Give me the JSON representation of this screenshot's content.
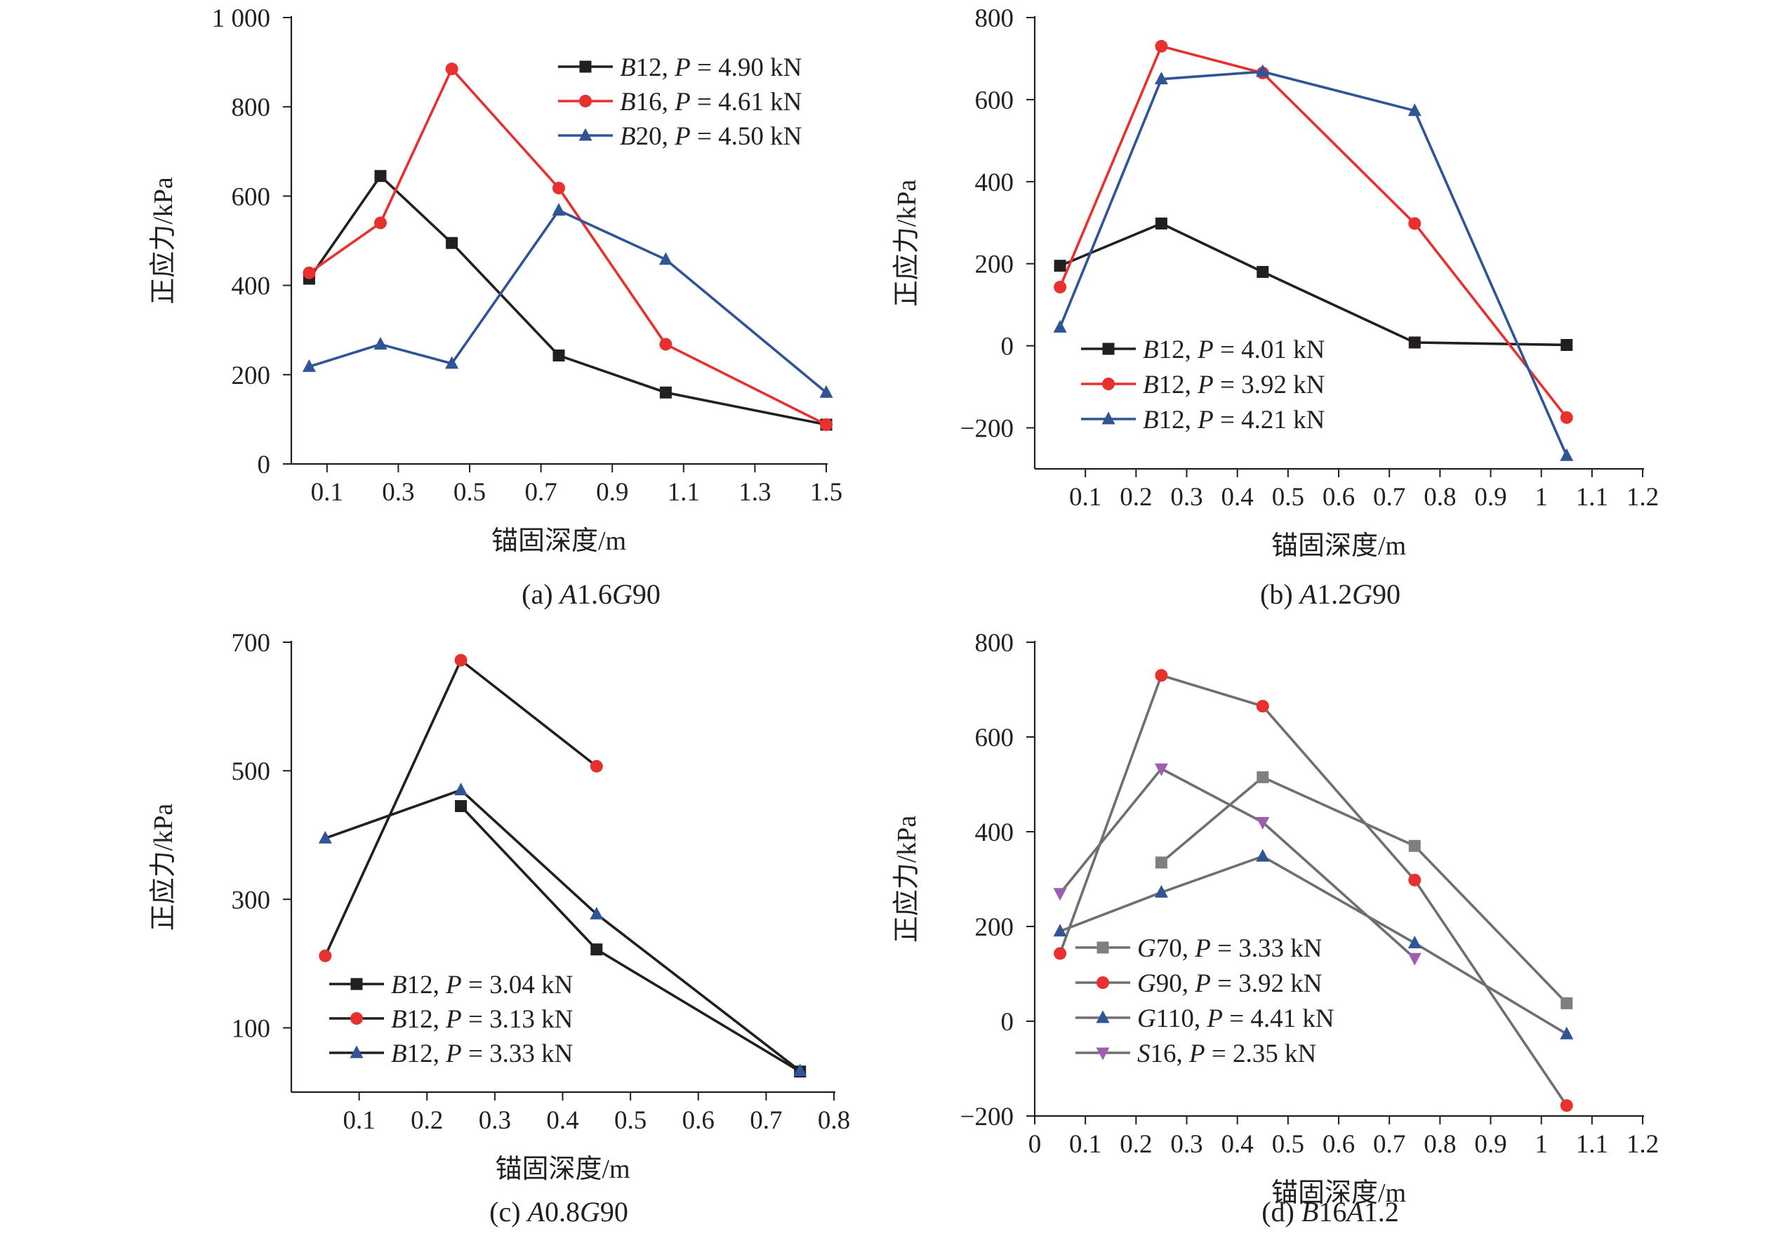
{
  "chart_data": [
    {
      "type": "line",
      "caption": {
        "prefix": "(a) ",
        "id_parts": [
          {
            "t": "A",
            "i": true
          },
          {
            "t": "1.6",
            "i": false
          },
          {
            "t": "G",
            "i": true
          },
          {
            "t": "90",
            "i": false
          }
        ]
      },
      "xlabel": "锚固深度/m",
      "ylabel": "正应力/kPa",
      "xlim": [
        0,
        1.5
      ],
      "ylim": [
        0,
        1000
      ],
      "xticks": [
        0.1,
        0.3,
        0.5,
        0.7,
        0.9,
        1.1,
        1.3,
        1.5
      ],
      "yticks": [
        0,
        200,
        400,
        600,
        800,
        1000
      ],
      "ytick_labels": [
        "0",
        "200",
        "400",
        "600",
        "800",
        "1 000"
      ],
      "legend_position": "top-right",
      "series": [
        {
          "name": "B12, P = 4.90 kN",
          "legend_parts": [
            {
              "t": "B",
              "i": true
            },
            {
              "t": "12, ",
              "i": false
            },
            {
              "t": "P",
              "i": true
            },
            {
              "t": " = 4.90 kN",
              "i": false
            }
          ],
          "color": "#231f20",
          "marker": "square",
          "x": [
            0.05,
            0.25,
            0.45,
            0.75,
            1.05,
            1.5
          ],
          "y": [
            415,
            645,
            495,
            243,
            160,
            88
          ]
        },
        {
          "name": "B16, P = 4.61 kN",
          "legend_parts": [
            {
              "t": "B",
              "i": true
            },
            {
              "t": "16, ",
              "i": false
            },
            {
              "t": "P",
              "i": true
            },
            {
              "t": " = 4.61 kN",
              "i": false
            }
          ],
          "color": "#e8312f",
          "marker": "circle",
          "x": [
            0.05,
            0.25,
            0.45,
            0.75,
            1.05,
            1.5
          ],
          "y": [
            428,
            540,
            885,
            618,
            268,
            88
          ]
        },
        {
          "name": "B20, P = 4.50 kN",
          "legend_parts": [
            {
              "t": "B",
              "i": true
            },
            {
              "t": "20, ",
              "i": false
            },
            {
              "t": "P",
              "i": true
            },
            {
              "t": " = 4.50 kN",
              "i": false
            }
          ],
          "color": "#2f5597",
          "marker": "triangle",
          "x": [
            0.05,
            0.25,
            0.45,
            0.75,
            1.05,
            1.5
          ],
          "y": [
            218,
            268,
            225,
            568,
            458,
            160
          ]
        }
      ]
    },
    {
      "type": "line",
      "caption": {
        "prefix": "(b) ",
        "id_parts": [
          {
            "t": "A",
            "i": true
          },
          {
            "t": "1.2",
            "i": false
          },
          {
            "t": "G",
            "i": true
          },
          {
            "t": "90",
            "i": false
          }
        ]
      },
      "xlabel": "锚固深度/m",
      "ylabel": "正应力/kPa",
      "xlim": [
        0,
        1.2
      ],
      "ylim": [
        -300,
        800
      ],
      "xticks": [
        0.1,
        0.2,
        0.3,
        0.4,
        0.5,
        0.6,
        0.7,
        0.8,
        0.9,
        1.0,
        1.1,
        1.2
      ],
      "yticks": [
        -200,
        0,
        200,
        400,
        600,
        800
      ],
      "ytick_labels": [
        "−200",
        "0",
        "200",
        "400",
        "600",
        "800"
      ],
      "legend_position": "bottom-left",
      "series": [
        {
          "name": "B12, P = 4.01 kN",
          "legend_parts": [
            {
              "t": "B",
              "i": true
            },
            {
              "t": "12, ",
              "i": false
            },
            {
              "t": "P",
              "i": true
            },
            {
              "t": " = 4.01 kN",
              "i": false
            }
          ],
          "color": "#231f20",
          "marker": "square",
          "x": [
            0.05,
            0.25,
            0.45,
            0.75,
            1.05
          ],
          "y": [
            195,
            298,
            180,
            8,
            2
          ]
        },
        {
          "name": "B12, P = 3.92 kN",
          "legend_parts": [
            {
              "t": "B",
              "i": true
            },
            {
              "t": "12, ",
              "i": false
            },
            {
              "t": "P",
              "i": true
            },
            {
              "t": " = 3.92 kN",
              "i": false
            }
          ],
          "color": "#e8312f",
          "marker": "circle",
          "x": [
            0.05,
            0.25,
            0.45,
            0.75,
            1.05
          ],
          "y": [
            143,
            730,
            665,
            298,
            -175
          ]
        },
        {
          "name": "B12, P = 4.21 kN",
          "legend_parts": [
            {
              "t": "B",
              "i": true
            },
            {
              "t": "12, ",
              "i": false
            },
            {
              "t": "P",
              "i": true
            },
            {
              "t": " = 4.21 kN",
              "i": false
            }
          ],
          "color": "#2f5597",
          "marker": "triangle",
          "x": [
            0.05,
            0.25,
            0.45,
            0.75,
            1.05
          ],
          "y": [
            45,
            650,
            668,
            573,
            -268
          ]
        }
      ]
    },
    {
      "type": "line",
      "caption": {
        "prefix": "(c) ",
        "id_parts": [
          {
            "t": "A",
            "i": true
          },
          {
            "t": "0.8",
            "i": false
          },
          {
            "t": "G",
            "i": true
          },
          {
            "t": "90",
            "i": false
          }
        ]
      },
      "xlabel": "锚固深度/m",
      "ylabel": "正应力/kPa",
      "xlim": [
        0,
        0.8
      ],
      "ylim": [
        0,
        700
      ],
      "xticks": [
        0.1,
        0.2,
        0.3,
        0.4,
        0.5,
        0.6,
        0.7,
        0.8
      ],
      "yticks": [
        100,
        300,
        500,
        700
      ],
      "ytick_labels": [
        "100",
        "300",
        "500",
        "700"
      ],
      "legend_position": "bottom-left",
      "series": [
        {
          "name": "B12, P = 3.04 kN",
          "legend_parts": [
            {
              "t": "B",
              "i": true
            },
            {
              "t": "12, ",
              "i": false
            },
            {
              "t": "P",
              "i": true
            },
            {
              "t": " = 3.04 kN",
              "i": false
            }
          ],
          "color": "#231f20",
          "marker": "square",
          "line_color": "#231f20",
          "x": [
            0.25,
            0.45,
            0.75
          ],
          "y": [
            445,
            222,
            32
          ]
        },
        {
          "name": "B12, P = 3.13 kN",
          "legend_parts": [
            {
              "t": "B",
              "i": true
            },
            {
              "t": "12, ",
              "i": false
            },
            {
              "t": "P",
              "i": true
            },
            {
              "t": " = 3.13 kN",
              "i": false
            }
          ],
          "color": "#e8312f",
          "marker": "circle",
          "line_color": "#231f20",
          "x": [
            0.05,
            0.25,
            0.45
          ],
          "y": [
            212,
            672,
            507
          ]
        },
        {
          "name": "B12, P = 3.33 kN",
          "legend_parts": [
            {
              "t": "B",
              "i": true
            },
            {
              "t": "12, ",
              "i": false
            },
            {
              "t": "P",
              "i": true
            },
            {
              "t": " = 3.33 kN",
              "i": false
            }
          ],
          "color": "#2f5597",
          "marker": "triangle",
          "line_color": "#231f20",
          "x": [
            0.05,
            0.25,
            0.45,
            0.75
          ],
          "y": [
            395,
            470,
            277,
            33
          ]
        }
      ]
    },
    {
      "type": "line",
      "caption": {
        "prefix": "(d) ",
        "id_parts": [
          {
            "t": "B",
            "i": true
          },
          {
            "t": "16",
            "i": false
          },
          {
            "t": "A",
            "i": true
          },
          {
            "t": "1.2",
            "i": false
          }
        ]
      },
      "xlabel": "锚固深度/m",
      "ylabel": "正应力/kPa",
      "xlim": [
        0,
        1.2
      ],
      "ylim": [
        -200,
        800
      ],
      "xticks": [
        0,
        0.1,
        0.2,
        0.3,
        0.4,
        0.5,
        0.6,
        0.7,
        0.8,
        0.9,
        1.0,
        1.1,
        1.2
      ],
      "yticks": [
        -200,
        0,
        200,
        400,
        600,
        800
      ],
      "ytick_labels": [
        "−200",
        "0",
        "200",
        "400",
        "600",
        "800"
      ],
      "legend_position": "bottom-left",
      "series": [
        {
          "name": "G70, P = 3.33 kN",
          "legend_parts": [
            {
              "t": "G",
              "i": true
            },
            {
              "t": "70, ",
              "i": false
            },
            {
              "t": "P",
              "i": true
            },
            {
              "t": " = 3.33 kN",
              "i": false
            }
          ],
          "color": "#7f7f7f",
          "marker": "square",
          "line_color": "#6f6f6f",
          "x": [
            0.25,
            0.45,
            0.75,
            1.05
          ],
          "y": [
            335,
            515,
            370,
            38
          ]
        },
        {
          "name": "G90, P = 3.92 kN",
          "legend_parts": [
            {
              "t": "G",
              "i": true
            },
            {
              "t": "90, ",
              "i": false
            },
            {
              "t": "P",
              "i": true
            },
            {
              "t": " = 3.92 kN",
              "i": false
            }
          ],
          "color": "#e8312f",
          "marker": "circle",
          "line_color": "#6f6f6f",
          "x": [
            0.05,
            0.25,
            0.45,
            0.75,
            1.05
          ],
          "y": [
            143,
            730,
            665,
            298,
            -178
          ]
        },
        {
          "name": "G110, P = 4.41 kN",
          "legend_parts": [
            {
              "t": "G",
              "i": true
            },
            {
              "t": "110, ",
              "i": false
            },
            {
              "t": "P",
              "i": true
            },
            {
              "t": " = 4.41 kN",
              "i": false
            }
          ],
          "color": "#2f5597",
          "marker": "triangle",
          "line_color": "#6f6f6f",
          "x": [
            0.05,
            0.25,
            0.45,
            0.75,
            1.05
          ],
          "y": [
            190,
            272,
            348,
            165,
            -27
          ]
        },
        {
          "name": "S16, P = 2.35 kN",
          "legend_parts": [
            {
              "t": "S",
              "i": true
            },
            {
              "t": "16, ",
              "i": false
            },
            {
              "t": "P",
              "i": true
            },
            {
              "t": " = 2.35 kN",
              "i": false
            }
          ],
          "color": "#9e5fb0",
          "marker": "triangle-down",
          "line_color": "#6f6f6f",
          "x": [
            0.05,
            0.25,
            0.45,
            0.75
          ],
          "y": [
            270,
            533,
            420,
            133
          ]
        }
      ]
    }
  ]
}
